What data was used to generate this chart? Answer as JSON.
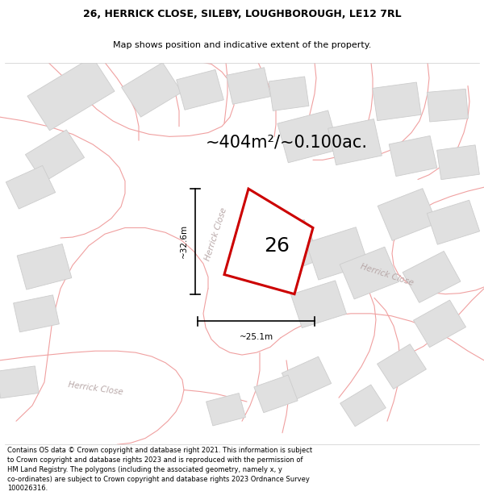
{
  "title_line1": "26, HERRICK CLOSE, SILEBY, LOUGHBOROUGH, LE12 7RL",
  "title_line2": "Map shows position and indicative extent of the property.",
  "area_text": "~404m²/~0.100ac.",
  "label_26": "26",
  "dim_vertical": "~32.6m",
  "dim_horizontal": "~25.1m",
  "street_label": "Herrick Close",
  "footnote": "Contains OS data © Crown copyright and database right 2021. This information is subject\nto Crown copyright and database rights 2023 and is reproduced with the permission of\nHM Land Registry. The polygons (including the associated geometry, namely x, y\nco-ordinates) are subject to Crown copyright and database rights 2023 Ordnance Survey\n100026316.",
  "bg_color": "#ffffff",
  "map_bg": "#f7f7f7",
  "road_color": "#f0a0a0",
  "road_lw": 0.8,
  "building_fill": "#e0e0e0",
  "building_edge": "#cccccc",
  "property_fill": "#ffffff",
  "property_edge": "#cc0000",
  "property_lw": 2.2,
  "fig_width": 6.0,
  "fig_height": 6.25,
  "title_fontsize": 9.0,
  "subtitle_fontsize": 8.0,
  "area_fontsize": 15,
  "label_fontsize": 18,
  "dim_fontsize": 7.5,
  "street_fontsize": 7.5,
  "footnote_fontsize": 6.0
}
